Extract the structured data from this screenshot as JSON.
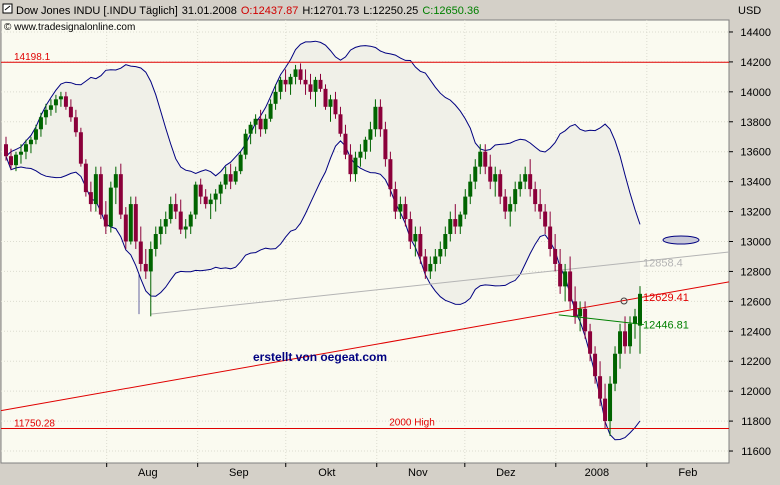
{
  "header": {
    "instrument": "Dow Jones INDU [.INDU Täglich]",
    "date": "31.01.2008",
    "open": "O:12437.87",
    "high": "H:12701.73",
    "low": "L:12250.25",
    "close": "C:12650.36",
    "copyright": "© www.tradesignalonline.com",
    "currency": "USD"
  },
  "watermark": "erstellt von oegeat.com",
  "colors": {
    "background": "#fafaf0",
    "frame": "#d4d0c8",
    "band_fill": "#f0f0e8",
    "band_line": "#000080",
    "horizontal_line": "#e00000",
    "trendline": "#e00000",
    "grey_trendline": "#b4b4b4",
    "green_line": "#008000",
    "candle_up": "#006400",
    "candle_down": "#8b003a"
  },
  "chart_data": {
    "type": "candlestick",
    "x_labels": [
      "Aug",
      "Sep",
      "Okt",
      "Nov",
      "Dez",
      "2008",
      "Feb"
    ],
    "y_ticks": [
      11600,
      11800,
      12000,
      12200,
      12400,
      12600,
      12800,
      13000,
      13200,
      13400,
      13600,
      13800,
      14000,
      14200,
      14400
    ],
    "ylim": [
      11520,
      14480
    ],
    "grid": true,
    "horizontal_lines": [
      {
        "value": 14198.1,
        "label": "14198.1"
      },
      {
        "value": 11750.28,
        "label": "11750.28",
        "note": "2000 High"
      }
    ],
    "price_labels": [
      {
        "value": 12858.4,
        "text": "12858.4",
        "color": "#b4b4b4"
      },
      {
        "value": 12629.41,
        "text": "12629.41",
        "color": "#e00000"
      },
      {
        "value": 12446.81,
        "text": "12446.81",
        "color": "#008000"
      }
    ],
    "red_trendline": {
      "from": [
        "2007-06-26",
        11870
      ],
      "to": [
        "2008-02-29",
        12730
      ]
    },
    "grey_trendline": {
      "from": [
        "2007-08-16",
        12515
      ],
      "to": [
        "2008-02-29",
        12930
      ]
    },
    "green_line": {
      "from": [
        "2008-01-02",
        12510
      ],
      "to": [
        "2008-01-31",
        12445
      ]
    },
    "series": [
      {
        "name": "Dow Jones INDU",
        "values": [
          [
            13650,
            13700,
            13540,
            13570
          ],
          [
            13570,
            13620,
            13480,
            13510
          ],
          [
            13510,
            13600,
            13470,
            13580
          ],
          [
            13580,
            13650,
            13520,
            13600
          ],
          [
            13600,
            13680,
            13550,
            13650
          ],
          [
            13650,
            13700,
            13590,
            13680
          ],
          [
            13680,
            13780,
            13650,
            13750
          ],
          [
            13750,
            13860,
            13700,
            13830
          ],
          [
            13830,
            13920,
            13780,
            13880
          ],
          [
            13880,
            13950,
            13840,
            13910
          ],
          [
            13910,
            13980,
            13860,
            13950
          ],
          [
            13950,
            14000,
            13900,
            13970
          ],
          [
            13970,
            14000,
            13880,
            13900
          ],
          [
            13900,
            13950,
            13800,
            13830
          ],
          [
            13830,
            13880,
            13700,
            13730
          ],
          [
            13730,
            13760,
            13500,
            13520
          ],
          [
            13520,
            13550,
            13300,
            13330
          ],
          [
            13330,
            13400,
            13200,
            13250
          ],
          [
            13250,
            13500,
            13200,
            13450
          ],
          [
            13450,
            13500,
            13150,
            13180
          ],
          [
            13180,
            13270,
            13050,
            13100
          ],
          [
            13100,
            13400,
            13060,
            13360
          ],
          [
            13360,
            13500,
            13250,
            13450
          ],
          [
            13450,
            13520,
            13150,
            13180
          ],
          [
            13180,
            13230,
            12950,
            13000
          ],
          [
            13000,
            13300,
            12980,
            13250
          ],
          [
            13250,
            13300,
            12950,
            13000
          ],
          [
            13000,
            13100,
            12800,
            12850
          ],
          [
            12850,
            12950,
            12750,
            12800
          ],
          [
            12800,
            13000,
            12500,
            12950
          ],
          [
            12950,
            13100,
            12900,
            13050
          ],
          [
            13050,
            13150,
            12980,
            13100
          ],
          [
            13100,
            13200,
            13050,
            13150
          ],
          [
            13150,
            13300,
            13120,
            13250
          ],
          [
            13250,
            13320,
            13150,
            13200
          ],
          [
            13200,
            13280,
            13050,
            13080
          ],
          [
            13080,
            13150,
            13020,
            13100
          ],
          [
            13100,
            13200,
            13050,
            13180
          ],
          [
            13180,
            13400,
            13150,
            13380
          ],
          [
            13380,
            13420,
            13250,
            13300
          ],
          [
            13300,
            13350,
            13220,
            13250
          ],
          [
            13250,
            13320,
            13150,
            13280
          ],
          [
            13280,
            13350,
            13200,
            13320
          ],
          [
            13320,
            13400,
            13250,
            13380
          ],
          [
            13380,
            13500,
            13350,
            13450
          ],
          [
            13450,
            13520,
            13350,
            13400
          ],
          [
            13400,
            13500,
            13380,
            13470
          ],
          [
            13470,
            13600,
            13450,
            13580
          ],
          [
            13580,
            13750,
            13550,
            13720
          ],
          [
            13720,
            13800,
            13650,
            13780
          ],
          [
            13780,
            13850,
            13720,
            13820
          ],
          [
            13820,
            13880,
            13700,
            13750
          ],
          [
            13750,
            13850,
            13720,
            13820
          ],
          [
            13820,
            13950,
            13800,
            13920
          ],
          [
            13920,
            14050,
            13880,
            14000
          ],
          [
            14000,
            14100,
            13950,
            14080
          ],
          [
            14080,
            14150,
            14000,
            14050
          ],
          [
            14050,
            14120,
            13980,
            14100
          ],
          [
            14100,
            14180,
            14050,
            14150
          ],
          [
            14150,
            14190,
            14050,
            14080
          ],
          [
            14080,
            14150,
            13980,
            14050
          ],
          [
            14050,
            14120,
            13950,
            14000
          ],
          [
            14000,
            14100,
            13900,
            14080
          ],
          [
            14080,
            14120,
            14000,
            14020
          ],
          [
            14020,
            14050,
            13880,
            13900
          ],
          [
            13900,
            13980,
            13800,
            13950
          ],
          [
            13950,
            14000,
            13820,
            13850
          ],
          [
            13850,
            13900,
            13700,
            13720
          ],
          [
            13720,
            13780,
            13550,
            13580
          ],
          [
            13580,
            13650,
            13400,
            13450
          ],
          [
            13450,
            13600,
            13400,
            13560
          ],
          [
            13560,
            13650,
            13500,
            13600
          ],
          [
            13600,
            13700,
            13550,
            13680
          ],
          [
            13680,
            13800,
            13600,
            13750
          ],
          [
            13750,
            13950,
            13700,
            13900
          ],
          [
            13900,
            13950,
            13700,
            13750
          ],
          [
            13750,
            13800,
            13500,
            13550
          ],
          [
            13550,
            13600,
            13300,
            13350
          ],
          [
            13350,
            13400,
            13150,
            13200
          ],
          [
            13200,
            13300,
            13150,
            13250
          ],
          [
            13250,
            13300,
            13100,
            13150
          ],
          [
            13150,
            13200,
            12950,
            13000
          ],
          [
            13000,
            13100,
            12900,
            13050
          ],
          [
            13050,
            13100,
            12850,
            12900
          ],
          [
            12900,
            12950,
            12750,
            12800
          ],
          [
            12800,
            12900,
            12750,
            12850
          ],
          [
            12850,
            12950,
            12800,
            12900
          ],
          [
            12900,
            13000,
            12850,
            12950
          ],
          [
            12950,
            13100,
            12900,
            13050
          ],
          [
            13050,
            13200,
            13000,
            13150
          ],
          [
            13150,
            13250,
            13050,
            13100
          ],
          [
            13100,
            13200,
            13050,
            13180
          ],
          [
            13180,
            13350,
            13150,
            13300
          ],
          [
            13300,
            13450,
            13250,
            13400
          ],
          [
            13400,
            13550,
            13350,
            13500
          ],
          [
            13500,
            13650,
            13450,
            13600
          ],
          [
            13600,
            13650,
            13450,
            13500
          ],
          [
            13500,
            13580,
            13350,
            13400
          ],
          [
            13400,
            13500,
            13300,
            13450
          ],
          [
            13450,
            13480,
            13250,
            13300
          ],
          [
            13300,
            13350,
            13150,
            13200
          ],
          [
            13200,
            13300,
            13100,
            13250
          ],
          [
            13250,
            13400,
            13200,
            13350
          ],
          [
            13350,
            13450,
            13300,
            13400
          ],
          [
            13400,
            13500,
            13350,
            13450
          ],
          [
            13450,
            13550,
            13300,
            13350
          ],
          [
            13350,
            13400,
            13200,
            13250
          ],
          [
            13250,
            13350,
            13150,
            13200
          ],
          [
            13200,
            13250,
            13050,
            13100
          ],
          [
            13100,
            13200,
            12900,
            12950
          ],
          [
            12950,
            13050,
            12800,
            12850
          ],
          [
            12850,
            12950,
            12650,
            12700
          ],
          [
            12700,
            12850,
            12600,
            12800
          ],
          [
            12800,
            12900,
            12550,
            12600
          ],
          [
            12600,
            12700,
            12450,
            12500
          ],
          [
            12500,
            12600,
            12400,
            12550
          ],
          [
            12550,
            12600,
            12350,
            12400
          ],
          [
            12400,
            12450,
            12200,
            12250
          ],
          [
            12250,
            12300,
            12050,
            12100
          ],
          [
            12100,
            12200,
            11900,
            11950
          ],
          [
            11950,
            12050,
            11750,
            11800
          ],
          [
            11800,
            12100,
            11700,
            12050
          ],
          [
            12050,
            12300,
            12000,
            12250
          ],
          [
            12250,
            12450,
            12150,
            12400
          ],
          [
            12400,
            12500,
            12250,
            12300
          ],
          [
            12300,
            12500,
            12250,
            12450
          ],
          [
            12450,
            12550,
            12350,
            12500
          ],
          [
            12437.87,
            12701.73,
            12250.25,
            12650.36
          ]
        ]
      }
    ]
  }
}
